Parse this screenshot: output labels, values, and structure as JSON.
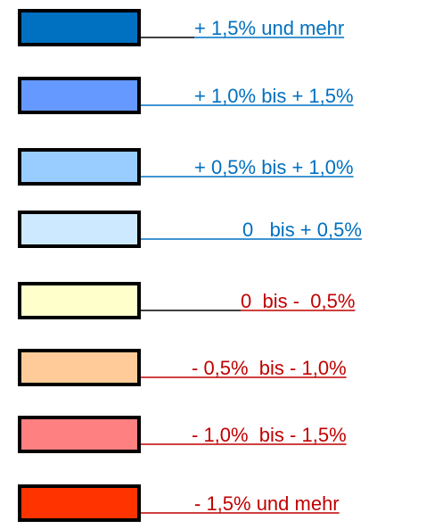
{
  "legend": {
    "items": [
      {
        "label": "+ 1,5% und mehr",
        "color": "#0070c0",
        "text_color": "#0070c0",
        "line_color": "#000000"
      },
      {
        "label": "+ 1,0% bis + 1,5%",
        "color": "#6699ff",
        "text_color": "#0070c0",
        "line_color": "#0070c0"
      },
      {
        "label": "+ 0,5% bis + 1,0%",
        "color": "#99ccff",
        "text_color": "#0070c0",
        "line_color": "#0070c0"
      },
      {
        "label": "0   bis + 0,5%",
        "color": "#cce9ff",
        "text_color": "#0070c0",
        "line_color": "#0070c0"
      },
      {
        "label": "0  bis -  0,5%",
        "color": "#ffffcc",
        "text_color": "#c00000",
        "line_color": "#000000"
      },
      {
        "label": "- 0,5%  bis - 1,0%",
        "color": "#ffcc99",
        "text_color": "#c00000",
        "line_color": "#c00000"
      },
      {
        "label": "- 1,0%  bis - 1,5%",
        "color": "#ff8080",
        "text_color": "#c00000",
        "line_color": "#c00000"
      },
      {
        "label": "- 1,5% und mehr",
        "color": "#ff3300",
        "text_color": "#c00000",
        "line_color": "#c00000"
      }
    ]
  }
}
